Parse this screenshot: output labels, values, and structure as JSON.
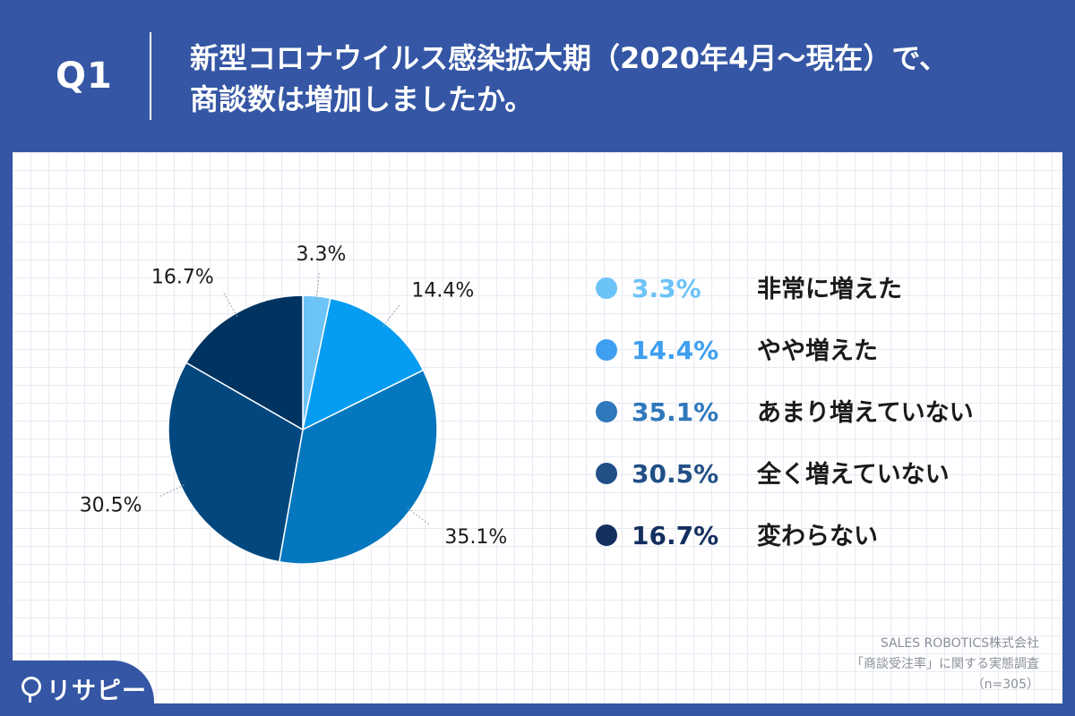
{
  "header": {
    "question_label": "Q1",
    "title_line1": "新型コロナウイルス感染拡大期（2020年4月〜現在）で、",
    "title_line2": "商談数は増加しましたか。"
  },
  "chart_data": {
    "type": "pie",
    "categories": [
      "非常に増えた",
      "やや増えた",
      "あまり増えていない",
      "全く増えていない",
      "変わらない"
    ],
    "values": [
      3.3,
      14.4,
      35.1,
      30.5,
      16.7
    ],
    "value_labels": [
      "3.3%",
      "14.4%",
      "35.1%",
      "30.5%",
      "16.7%"
    ],
    "colors": [
      "#6cc3f7",
      "#059cf1",
      "#0477be",
      "#02487f",
      "#013360"
    ],
    "legend_colors": [
      "#6cc3f7",
      "#3e9ff0",
      "#2e78bb",
      "#214f86",
      "#132f5e"
    ],
    "legend_position": "right"
  },
  "source": {
    "line1": "SALES ROBOTICS株式会社",
    "line2": "「商談受注率」に関する実態調査",
    "line3": "（n=305）"
  },
  "logo": {
    "text": "リサピー"
  }
}
